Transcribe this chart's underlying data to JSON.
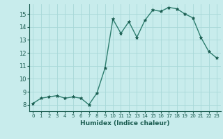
{
  "x": [
    0,
    1,
    2,
    3,
    4,
    5,
    6,
    7,
    8,
    9,
    10,
    11,
    12,
    13,
    14,
    15,
    16,
    17,
    18,
    19,
    20,
    21,
    22,
    23
  ],
  "y": [
    8.1,
    8.5,
    8.6,
    8.7,
    8.5,
    8.6,
    8.5,
    8.0,
    8.9,
    10.8,
    14.6,
    13.5,
    14.4,
    13.2,
    14.5,
    15.3,
    15.2,
    15.5,
    15.4,
    15.0,
    14.7,
    13.2,
    12.1,
    11.6
  ],
  "xlabel": "Humidex (Indice chaleur)",
  "ylim": [
    7.5,
    15.75
  ],
  "xlim": [
    -0.5,
    23.5
  ],
  "yticks": [
    8,
    9,
    10,
    11,
    12,
    13,
    14,
    15
  ],
  "xticks": [
    0,
    1,
    2,
    3,
    4,
    5,
    6,
    7,
    8,
    9,
    10,
    11,
    12,
    13,
    14,
    15,
    16,
    17,
    18,
    19,
    20,
    21,
    22,
    23
  ],
  "line_color": "#2d7d6e",
  "marker_color": "#1a5c50",
  "bg_color": "#c8ecec",
  "grid_color": "#a8d8d8",
  "label_color": "#1a5c50",
  "tick_color": "#1a5c50"
}
